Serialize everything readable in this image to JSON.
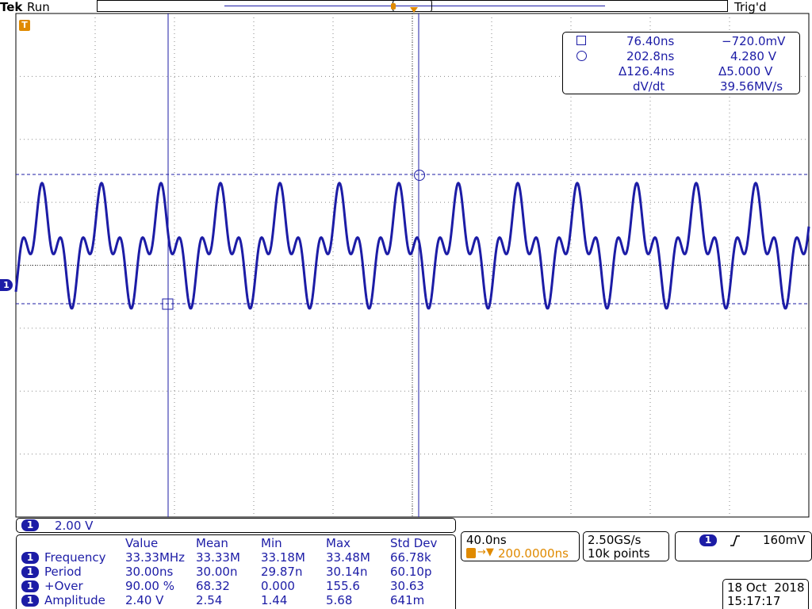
{
  "header": {
    "brand": "Tek",
    "run_state": "Run",
    "trigger_status": "Trig'd"
  },
  "channel_marker": "1",
  "trigger_marker": "T",
  "cursors": {
    "square": {
      "time": "76.40ns",
      "voltage": "−720.0mV"
    },
    "circle": {
      "time": "202.8ns",
      "voltage": "4.280 V"
    },
    "delta": {
      "time": "Δ126.4ns",
      "voltage": "Δ5.000 V"
    },
    "rate": {
      "label": "dV/dt",
      "value": "39.56MV/s"
    }
  },
  "channel_scale": {
    "channel": "1",
    "value": "2.00 V"
  },
  "measurements": {
    "headers": [
      "Value",
      "Mean",
      "Min",
      "Max",
      "Std Dev"
    ],
    "rows": [
      {
        "channel": "1",
        "name": "Frequency",
        "value": "33.33MHz",
        "mean": "33.33M",
        "min": "33.18M",
        "max": "33.48M",
        "std": "66.78k"
      },
      {
        "channel": "1",
        "name": "Period",
        "value": "30.00ns",
        "mean": "30.00n",
        "min": "29.87n",
        "max": "30.14n",
        "std": "60.10p"
      },
      {
        "channel": "1",
        "name": "+Over",
        "value": "90.00 %",
        "mean": "68.32",
        "min": "0.000",
        "max": "155.6",
        "std": "30.63"
      },
      {
        "channel": "1",
        "name": "Amplitude",
        "value": "2.40 V",
        "mean": "2.54",
        "min": "1.44",
        "max": "5.68",
        "std": "641m"
      }
    ]
  },
  "timebase": {
    "scale": "40.0ns",
    "position": "200.0000ns"
  },
  "acquisition": {
    "sample_rate": "2.50GS/s",
    "record_length": "10k points"
  },
  "trigger": {
    "channel": "1",
    "slope": "rising-edge-icon",
    "level": "160mV"
  },
  "datetime": {
    "date": "18 Oct  2018",
    "time": "15:17:17"
  },
  "colors": {
    "trace": "#1c1ca6",
    "cursor": "#1c1ca6",
    "accent": "#e08a00"
  }
}
